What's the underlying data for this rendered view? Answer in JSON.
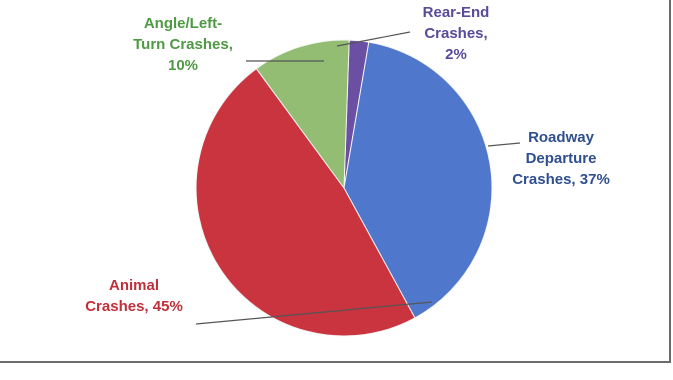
{
  "chart_data": {
    "type": "pie",
    "title": "",
    "slices": [
      {
        "label": "Rear-End Crashes, 2%",
        "lines": [
          "Rear-End",
          "Crashes,",
          "2%"
        ],
        "value": 2,
        "color": "#6a4fa3",
        "label_color": "#5a4a9a"
      },
      {
        "label": "Roadway Departure Crashes, 37%",
        "lines": [
          "Roadway",
          "Departure",
          "Crashes, 37%"
        ],
        "value": 37,
        "color": "#4f77cc",
        "label_color": "#2f4f8e"
      },
      {
        "label": "Animal Crashes, 45%",
        "lines": [
          "Animal",
          "Crashes, 45%"
        ],
        "value": 45,
        "color": "#c9343f",
        "label_color": "#c0303a"
      },
      {
        "label": "Angle/Left-Turn Crashes, 10%",
        "lines": [
          "Angle/Left-",
          "Turn Crashes,",
          "10%"
        ],
        "value": 10,
        "color": "#93bd73",
        "label_color": "#4e9a43"
      }
    ]
  }
}
